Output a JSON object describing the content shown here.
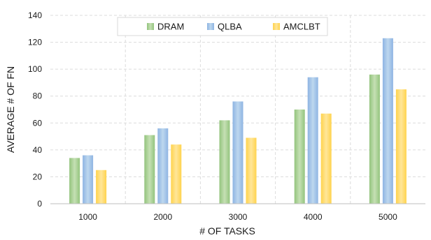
{
  "chart_data": {
    "type": "bar",
    "categories": [
      "1000",
      "2000",
      "3000",
      "4000",
      "5000"
    ],
    "series": [
      {
        "name": "DRAM",
        "values": [
          34,
          51,
          62,
          70,
          96
        ],
        "color": "#a9d18e"
      },
      {
        "name": "QLBA",
        "values": [
          36,
          56,
          76,
          94,
          123
        ],
        "color": "#9dc3e6"
      },
      {
        "name": "AMCLBT",
        "values": [
          25,
          44,
          49,
          67,
          85
        ],
        "color": "#ffd966"
      }
    ],
    "title": "",
    "xlabel": "# OF  TASKS",
    "ylabel": "AVERAGE # OF FN",
    "ylim": [
      0,
      140
    ],
    "yticks": [
      0,
      20,
      40,
      60,
      80,
      100,
      120,
      140
    ],
    "grid": true,
    "legend": "top-center"
  }
}
